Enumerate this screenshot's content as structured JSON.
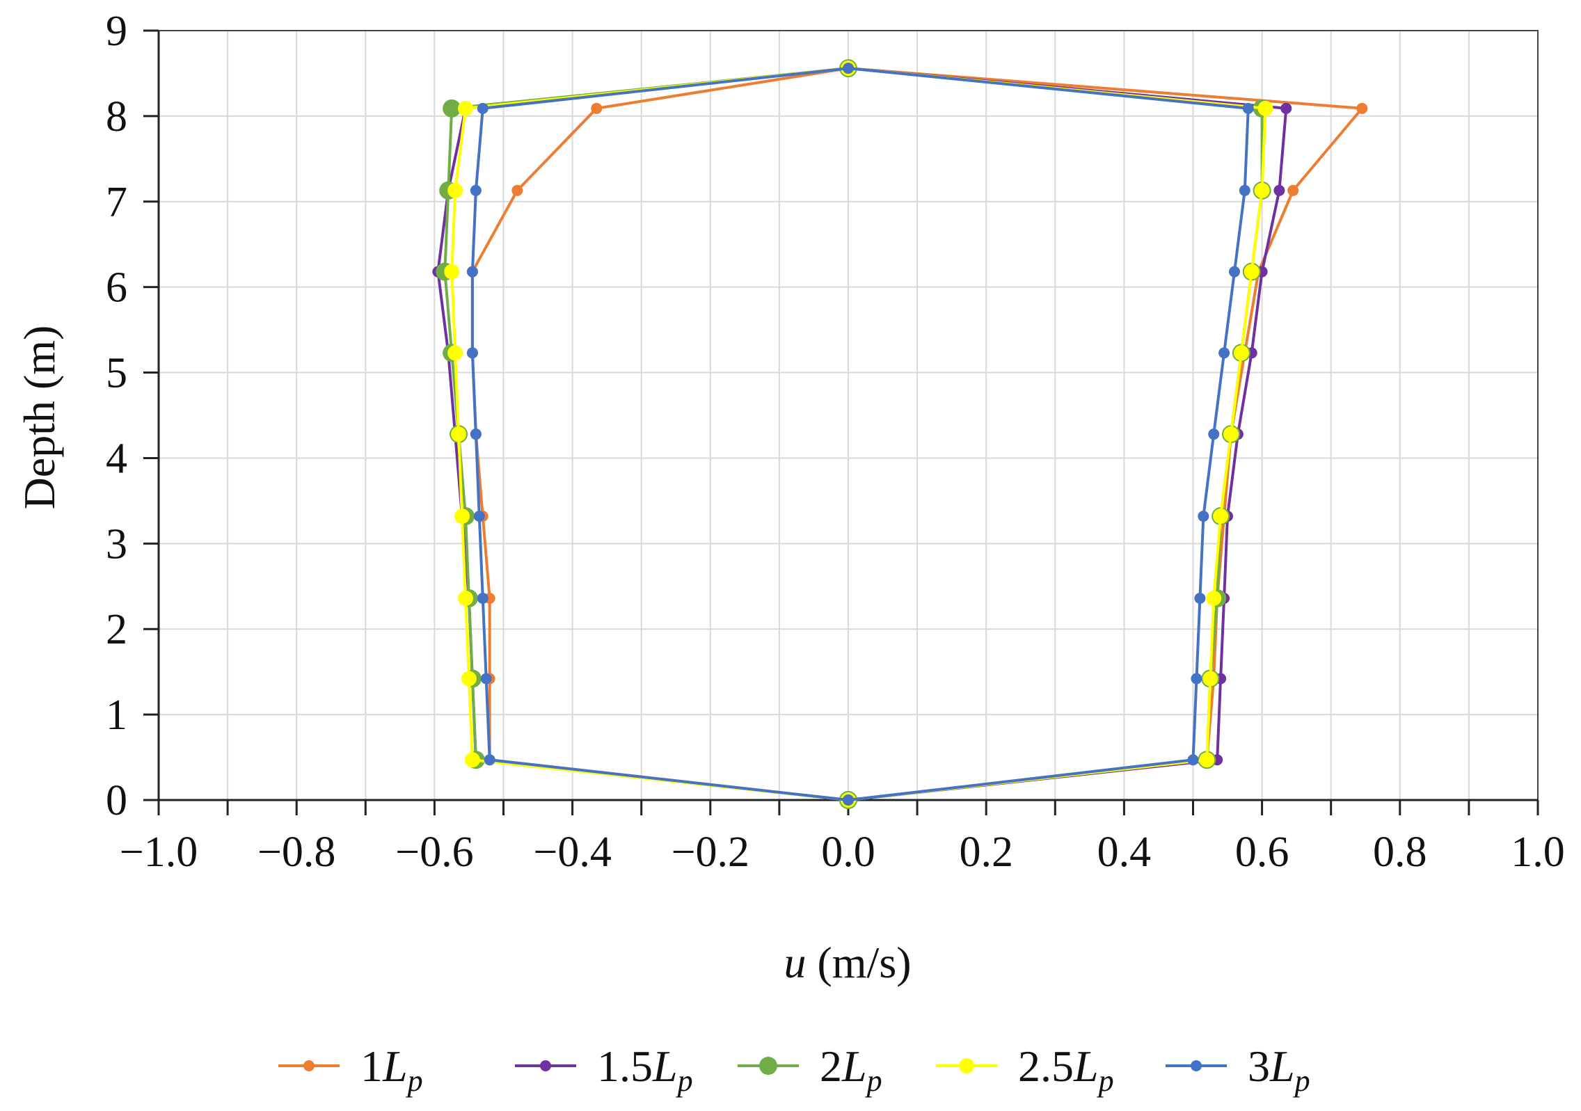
{
  "chart_data": {
    "type": "line",
    "xlabel": {
      "var": "u",
      "unit": " (m/s)"
    },
    "ylabel": "Depth (m)",
    "xlim": [
      -1.0,
      1.0
    ],
    "ylim": [
      0,
      9
    ],
    "x_ticks": [
      "−1.0",
      "−0.8",
      "−0.6",
      "−0.4",
      "−0.2",
      "0.0",
      "0.2",
      "0.4",
      "0.6",
      "0.8",
      "1.0"
    ],
    "x_tick_values": [
      -1.0,
      -0.8,
      -0.6,
      -0.4,
      -0.2,
      0.0,
      0.2,
      0.4,
      0.6,
      0.8,
      1.0
    ],
    "y_ticks": [
      "0",
      "1",
      "2",
      "3",
      "4",
      "5",
      "6",
      "7",
      "8",
      "9"
    ],
    "y_tick_values": [
      0,
      1,
      2,
      3,
      4,
      5,
      6,
      7,
      8,
      9
    ],
    "grid": true,
    "legend_position": "bottom",
    "series": [
      {
        "name": "1L",
        "name_prefix": "1",
        "name_var": "L",
        "name_sub": "p",
        "color": "#ED7D31",
        "marker": "small",
        "points": [
          [
            0.0,
            0.0
          ],
          [
            0.52,
            0.47
          ],
          [
            0.53,
            1.42
          ],
          [
            0.535,
            2.36
          ],
          [
            0.545,
            3.32
          ],
          [
            0.555,
            4.28
          ],
          [
            0.575,
            5.23
          ],
          [
            0.595,
            6.18
          ],
          [
            0.645,
            7.13
          ],
          [
            0.745,
            8.09
          ],
          [
            0.0,
            8.56
          ],
          [
            -0.365,
            8.09
          ],
          [
            -0.48,
            7.13
          ],
          [
            -0.545,
            6.18
          ],
          [
            -0.545,
            5.23
          ],
          [
            -0.54,
            4.28
          ],
          [
            -0.53,
            3.32
          ],
          [
            -0.52,
            2.36
          ],
          [
            -0.52,
            1.42
          ],
          [
            -0.52,
            0.47
          ],
          [
            0.0,
            0.0
          ]
        ]
      },
      {
        "name": "1.5L",
        "name_prefix": "1.5",
        "name_var": "L",
        "name_sub": "p",
        "color": "#7030A0",
        "marker": "small",
        "points": [
          [
            0.0,
            0.0
          ],
          [
            0.535,
            0.47
          ],
          [
            0.54,
            1.42
          ],
          [
            0.545,
            2.36
          ],
          [
            0.55,
            3.32
          ],
          [
            0.565,
            4.28
          ],
          [
            0.585,
            5.23
          ],
          [
            0.6,
            6.18
          ],
          [
            0.625,
            7.13
          ],
          [
            0.635,
            8.09
          ],
          [
            0.0,
            8.56
          ],
          [
            -0.555,
            8.09
          ],
          [
            -0.58,
            7.13
          ],
          [
            -0.595,
            6.18
          ],
          [
            -0.58,
            5.23
          ],
          [
            -0.57,
            4.28
          ],
          [
            -0.56,
            3.32
          ],
          [
            -0.55,
            2.36
          ],
          [
            -0.545,
            1.42
          ],
          [
            -0.54,
            0.47
          ],
          [
            0.0,
            0.0
          ]
        ]
      },
      {
        "name": "2L",
        "name_prefix": "2",
        "name_var": "L",
        "name_sub": "p",
        "color": "#70AD47",
        "marker": "large",
        "points": [
          [
            0.0,
            0.0
          ],
          [
            0.52,
            0.47
          ],
          [
            0.525,
            1.42
          ],
          [
            0.535,
            2.36
          ],
          [
            0.54,
            3.32
          ],
          [
            0.555,
            4.28
          ],
          [
            0.57,
            5.23
          ],
          [
            0.585,
            6.18
          ],
          [
            0.6,
            7.13
          ],
          [
            0.6,
            8.09
          ],
          [
            0.0,
            8.56
          ],
          [
            -0.575,
            8.09
          ],
          [
            -0.58,
            7.13
          ],
          [
            -0.585,
            6.18
          ],
          [
            -0.575,
            5.23
          ],
          [
            -0.565,
            4.28
          ],
          [
            -0.555,
            3.32
          ],
          [
            -0.55,
            2.36
          ],
          [
            -0.545,
            1.42
          ],
          [
            -0.54,
            0.47
          ],
          [
            0.0,
            0.0
          ]
        ]
      },
      {
        "name": "2.5L",
        "name_prefix": "2.5",
        "name_var": "L",
        "name_sub": "p",
        "color": "#FFFF00",
        "marker": "medium",
        "points": [
          [
            0.0,
            0.0
          ],
          [
            0.52,
            0.47
          ],
          [
            0.525,
            1.42
          ],
          [
            0.53,
            2.36
          ],
          [
            0.54,
            3.32
          ],
          [
            0.555,
            4.28
          ],
          [
            0.57,
            5.23
          ],
          [
            0.585,
            6.18
          ],
          [
            0.6,
            7.13
          ],
          [
            0.605,
            8.09
          ],
          [
            0.0,
            8.56
          ],
          [
            -0.555,
            8.09
          ],
          [
            -0.57,
            7.13
          ],
          [
            -0.575,
            6.18
          ],
          [
            -0.57,
            5.23
          ],
          [
            -0.565,
            4.28
          ],
          [
            -0.56,
            3.32
          ],
          [
            -0.555,
            2.36
          ],
          [
            -0.55,
            1.42
          ],
          [
            -0.545,
            0.47
          ],
          [
            0.0,
            0.0
          ]
        ]
      },
      {
        "name": "3L",
        "name_prefix": "3",
        "name_var": "L",
        "name_sub": "p",
        "color": "#4472C4",
        "marker": "small",
        "points": [
          [
            0.0,
            0.0
          ],
          [
            0.5,
            0.47
          ],
          [
            0.505,
            1.42
          ],
          [
            0.51,
            2.36
          ],
          [
            0.515,
            3.32
          ],
          [
            0.53,
            4.28
          ],
          [
            0.545,
            5.23
          ],
          [
            0.56,
            6.18
          ],
          [
            0.575,
            7.13
          ],
          [
            0.58,
            8.09
          ],
          [
            0.0,
            8.56
          ],
          [
            -0.53,
            8.09
          ],
          [
            -0.54,
            7.13
          ],
          [
            -0.545,
            6.18
          ],
          [
            -0.545,
            5.23
          ],
          [
            -0.54,
            4.28
          ],
          [
            -0.535,
            3.32
          ],
          [
            -0.53,
            2.36
          ],
          [
            -0.525,
            1.42
          ],
          [
            -0.52,
            0.47
          ],
          [
            0.0,
            0.0
          ]
        ]
      }
    ]
  }
}
